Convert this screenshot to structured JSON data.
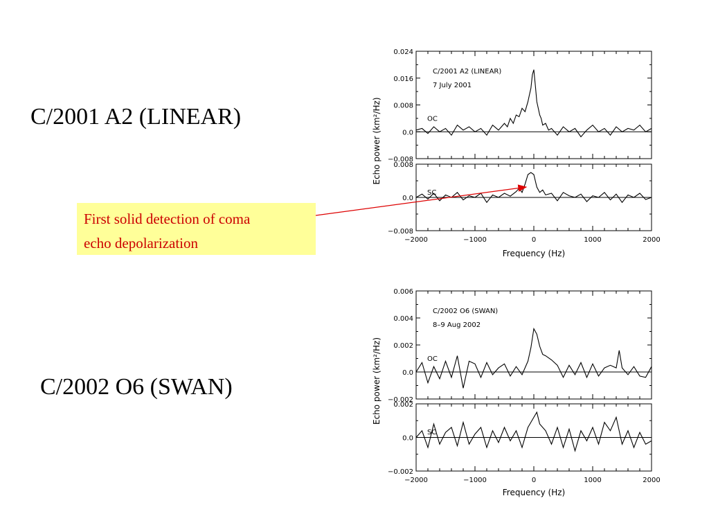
{
  "slide": {
    "heading_1": "C/2001 A2 (LINEAR)",
    "heading_2": "C/2002 O6 (SWAN)",
    "callout_line1": "First solid detection of coma",
    "callout_line2": "echo depolarization",
    "callout_bg": "#ffff99",
    "callout_text_color": "#cc0000",
    "arrow_color": "#dd0000"
  },
  "chart_data": [
    {
      "type": "line",
      "title": "C/2001 A2 (LINEAR)",
      "annotation": "7 July 2001",
      "xlabel": "Frequency (Hz)",
      "ylabel": "Echo power (km²/Hz)",
      "xlim": [
        -2000,
        2000
      ],
      "xticks": [
        "−2000",
        "−1000",
        "0",
        "1000",
        "2000"
      ],
      "panels": [
        {
          "label": "OC",
          "ylim": [
            -0.008,
            0.024
          ],
          "yticks": [
            "0.024",
            "0.016",
            "0.008",
            "0.0",
            "−0.008"
          ],
          "series": {
            "x": [
              -2000,
              -1900,
              -1800,
              -1700,
              -1600,
              -1500,
              -1400,
              -1300,
              -1200,
              -1100,
              -1000,
              -900,
              -800,
              -700,
              -600,
              -500,
              -450,
              -400,
              -350,
              -300,
              -250,
              -200,
              -150,
              -100,
              -75,
              -50,
              -25,
              0,
              25,
              50,
              75,
              100,
              125,
              150,
              200,
              250,
              300,
              400,
              500,
              600,
              700,
              800,
              900,
              1000,
              1100,
              1200,
              1300,
              1400,
              1500,
              1600,
              1700,
              1800,
              1900,
              2000
            ],
            "y": [
              0.0005,
              0.001,
              -0.0005,
              0.0015,
              0.0,
              0.001,
              -0.001,
              0.002,
              0.0005,
              0.0015,
              0.0,
              0.001,
              -0.001,
              0.002,
              0.0005,
              0.0025,
              0.0015,
              0.004,
              0.0025,
              0.005,
              0.0045,
              0.007,
              0.006,
              0.009,
              0.011,
              0.013,
              0.017,
              0.0185,
              0.014,
              0.009,
              0.007,
              0.005,
              0.004,
              0.002,
              0.0025,
              0.0005,
              0.001,
              -0.001,
              0.0015,
              0.0,
              0.001,
              -0.0015,
              0.0005,
              0.002,
              0.0,
              0.001,
              -0.001,
              0.0015,
              0.0,
              0.001,
              0.0005,
              0.002,
              0.0,
              0.001
            ]
          }
        },
        {
          "label": "SC",
          "ylim": [
            -0.008,
            0.008
          ],
          "yticks": [
            "0.008",
            "0.0",
            "−0.008"
          ],
          "series": {
            "x": [
              -2000,
              -1900,
              -1800,
              -1700,
              -1600,
              -1500,
              -1400,
              -1300,
              -1200,
              -1100,
              -1000,
              -900,
              -800,
              -700,
              -600,
              -500,
              -400,
              -300,
              -250,
              -200,
              -150,
              -100,
              -50,
              0,
              50,
              100,
              150,
              200,
              300,
              400,
              500,
              600,
              700,
              800,
              900,
              1000,
              1100,
              1200,
              1300,
              1400,
              1500,
              1600,
              1700,
              1800,
              1900,
              2000
            ],
            "y": [
              0.0,
              0.0008,
              -0.0004,
              0.001,
              -0.0008,
              0.0006,
              0.0,
              0.0012,
              -0.0006,
              0.0004,
              0.0,
              0.001,
              -0.0012,
              0.0006,
              0.0,
              0.001,
              0.0003,
              0.0014,
              0.0022,
              0.0012,
              0.0032,
              0.0055,
              0.006,
              0.0055,
              0.0025,
              0.0012,
              0.0018,
              0.0006,
              0.001,
              -0.0008,
              0.0012,
              0.0004,
              0.0,
              0.0008,
              -0.001,
              0.0004,
              0.0,
              0.0012,
              -0.0006,
              0.0008,
              -0.0012,
              0.0006,
              0.0,
              0.001,
              -0.0005,
              0.0
            ]
          }
        }
      ]
    },
    {
      "type": "line",
      "title": "C/2002 O6 (SWAN)",
      "annotation": "8–9 Aug 2002",
      "xlabel": "Frequency (Hz)",
      "ylabel": "Echo power (km²/Hz)",
      "xlim": [
        -2000,
        2000
      ],
      "xticks": [
        "−2000",
        "−1000",
        "0",
        "1000",
        "2000"
      ],
      "panels": [
        {
          "label": "OC",
          "ylim": [
            -0.002,
            0.006
          ],
          "yticks": [
            "0.006",
            "0.004",
            "0.002",
            "0.0",
            "−0.002"
          ],
          "series": {
            "x": [
              -2000,
              -1900,
              -1800,
              -1700,
              -1600,
              -1500,
              -1400,
              -1300,
              -1200,
              -1100,
              -1000,
              -900,
              -800,
              -700,
              -600,
              -500,
              -400,
              -300,
              -200,
              -100,
              -50,
              0,
              50,
              100,
              150,
              200,
              300,
              400,
              500,
              600,
              700,
              800,
              900,
              1000,
              1100,
              1200,
              1300,
              1400,
              1450,
              1500,
              1600,
              1700,
              1800,
              1900,
              2000
            ],
            "y": [
              0.0,
              0.0007,
              -0.0008,
              0.0004,
              -0.0005,
              0.0008,
              -0.0004,
              0.0012,
              -0.0012,
              0.0008,
              0.0006,
              -0.0004,
              0.0007,
              -0.0002,
              0.0003,
              0.0006,
              -0.0003,
              0.0004,
              -0.0002,
              0.0008,
              0.0018,
              0.0032,
              0.0028,
              0.0019,
              0.0013,
              0.0012,
              0.0009,
              0.0005,
              -0.0004,
              0.0005,
              -0.0002,
              0.0007,
              -0.0004,
              0.0006,
              -0.0003,
              0.0003,
              0.0005,
              0.0003,
              0.0016,
              0.0003,
              -0.0002,
              0.0004,
              -0.0003,
              -0.0004,
              0.0004
            ]
          }
        },
        {
          "label": "SC",
          "ylim": [
            -0.002,
            0.002
          ],
          "yticks": [
            "0.002",
            "0.0",
            "−0.002"
          ],
          "series": {
            "x": [
              -2000,
              -1900,
              -1800,
              -1700,
              -1600,
              -1500,
              -1400,
              -1300,
              -1200,
              -1100,
              -1000,
              -900,
              -800,
              -700,
              -600,
              -500,
              -400,
              -300,
              -200,
              -100,
              0,
              50,
              100,
              200,
              300,
              400,
              500,
              600,
              700,
              800,
              900,
              1000,
              1100,
              1200,
              1300,
              1400,
              1500,
              1600,
              1700,
              1800,
              1900,
              2000
            ],
            "y": [
              0.0,
              0.0004,
              -0.0006,
              0.0008,
              -0.0004,
              0.0003,
              0.0006,
              -0.0005,
              0.0009,
              -0.0004,
              0.0002,
              0.0006,
              -0.0006,
              0.0004,
              -0.0003,
              0.0006,
              -0.0002,
              0.0004,
              -0.0006,
              0.0006,
              0.0012,
              0.0015,
              0.0008,
              0.0004,
              -0.0004,
              0.0006,
              -0.0006,
              0.0005,
              -0.0008,
              0.0004,
              -0.0002,
              0.0006,
              -0.0004,
              0.0009,
              0.0004,
              0.0012,
              -0.0004,
              0.0004,
              -0.0006,
              0.0003,
              -0.0004,
              -0.0002
            ]
          }
        }
      ]
    }
  ]
}
